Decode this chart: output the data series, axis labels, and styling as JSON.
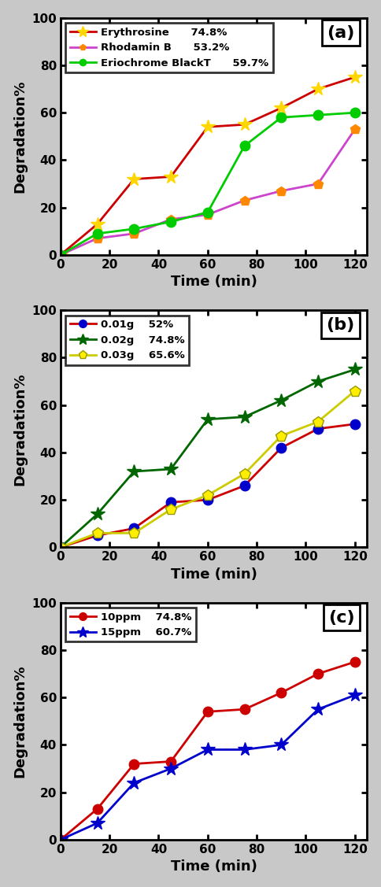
{
  "time_points": [
    0,
    15,
    30,
    45,
    60,
    75,
    90,
    105,
    120
  ],
  "panel_a": {
    "title": "(a)",
    "series": [
      {
        "label": "Erythrosine",
        "pct": "74.8%",
        "line_color": "#CC0000",
        "marker": "*",
        "markersize": 13,
        "marker_face": "#FFD700",
        "marker_edge": "#FFD700",
        "values": [
          0,
          13,
          32,
          33,
          54,
          55,
          62,
          70,
          75
        ]
      },
      {
        "label": "Rhodamin B",
        "pct": "53.2%",
        "line_color": "#CC44CC",
        "marker": "p",
        "markersize": 9,
        "marker_face": "#FF8800",
        "marker_edge": "#FF8800",
        "values": [
          0,
          7,
          9,
          15,
          17,
          23,
          27,
          30,
          53
        ]
      },
      {
        "label": "Eriochrome BlackT",
        "pct": "59.7%",
        "line_color": "#00CC00",
        "marker": "o",
        "markersize": 9,
        "marker_face": "#00CC00",
        "marker_edge": "#00CC00",
        "values": [
          0,
          9,
          11,
          14,
          18,
          46,
          58,
          59,
          60
        ]
      }
    ]
  },
  "panel_b": {
    "title": "(b)",
    "series": [
      {
        "label": "0.01g",
        "pct": "52%",
        "line_color": "#CC0000",
        "marker": "o",
        "markersize": 9,
        "marker_face": "#0000CC",
        "marker_edge": "#0000CC",
        "values": [
          0,
          5,
          8,
          19,
          20,
          26,
          42,
          50,
          52
        ]
      },
      {
        "label": "0.02g",
        "pct": "74.8%",
        "line_color": "#006600",
        "marker": "*",
        "markersize": 13,
        "marker_face": "#006600",
        "marker_edge": "#006600",
        "values": [
          0,
          14,
          32,
          33,
          54,
          55,
          62,
          70,
          75
        ]
      },
      {
        "label": "0.03g",
        "pct": "65.6%",
        "line_color": "#CCCC00",
        "marker": "p",
        "markersize": 10,
        "marker_face": "#FFEE00",
        "marker_edge": "#999900",
        "values": [
          0,
          6,
          6,
          16,
          22,
          31,
          47,
          53,
          66
        ]
      }
    ]
  },
  "panel_c": {
    "title": "(c)",
    "series": [
      {
        "label": "10ppm",
        "pct": "74.8%",
        "line_color": "#CC0000",
        "marker": "o",
        "markersize": 9,
        "marker_face": "#CC0000",
        "marker_edge": "#CC0000",
        "values": [
          0,
          13,
          32,
          33,
          54,
          55,
          62,
          70,
          75
        ]
      },
      {
        "label": "15ppm",
        "pct": "60.7%",
        "line_color": "#0000CC",
        "marker": "*",
        "markersize": 13,
        "marker_face": "#0000CC",
        "marker_edge": "#0000CC",
        "values": [
          0,
          7,
          24,
          30,
          38,
          38,
          40,
          55,
          61
        ]
      }
    ]
  },
  "ylim": [
    0,
    100
  ],
  "xlim": [
    0,
    125
  ],
  "yticks": [
    0,
    20,
    40,
    60,
    80,
    100
  ],
  "xticks": [
    0,
    20,
    40,
    60,
    80,
    100,
    120
  ],
  "xlabel": "Time (min)",
  "ylabel": "Degradation%",
  "fig_facecolor": "#C8C8C8",
  "ax_facecolor": "#ffffff"
}
